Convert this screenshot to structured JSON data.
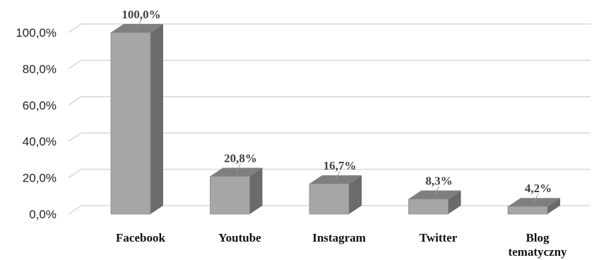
{
  "chart_data": {
    "type": "bar",
    "three_d": true,
    "categories": [
      "Facebook",
      "Youtube",
      "Instagram",
      "Twitter",
      "Blog tematyczny"
    ],
    "category_lines": [
      [
        "Facebook"
      ],
      [
        "Youtube"
      ],
      [
        "Instagram"
      ],
      [
        "Twitter"
      ],
      [
        "Blog",
        "tematyczny"
      ]
    ],
    "values": [
      100.0,
      20.8,
      16.7,
      8.3,
      4.2
    ],
    "data_labels": [
      "100,0%",
      "20,8%",
      "16,7%",
      "8,3%",
      "4,2%"
    ],
    "y_ticks": [
      "0,0%",
      "20,0%",
      "40,0%",
      "60,0%",
      "80,0%",
      "100,0%"
    ],
    "ylim": [
      0,
      100
    ],
    "grid": true,
    "legend": "none",
    "title": "",
    "xlabel": "",
    "ylabel": "",
    "colors": {
      "bar_front": "#a6a6a6",
      "bar_side": "#6b6b6b",
      "bar_top": "#7f7f7f",
      "bar_edge": "#8a8a8a",
      "grid": "#d9d9d9",
      "wall": "#d9d9d9"
    }
  }
}
